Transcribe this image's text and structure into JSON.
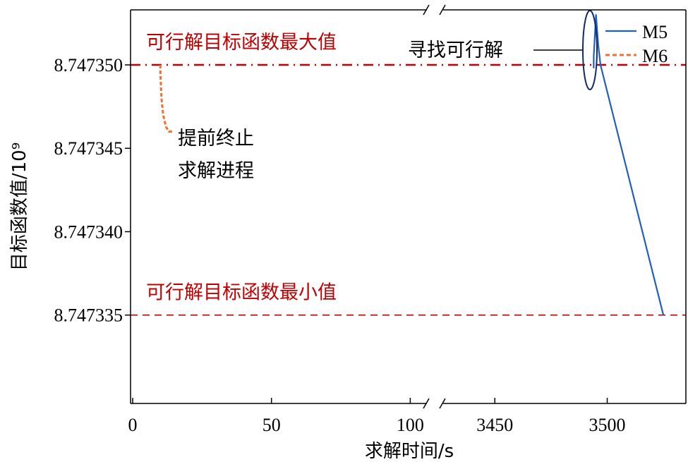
{
  "chart_data": {
    "type": "line",
    "xlabel": "求解时间/s",
    "ylabel": "目标函数值/10⁹",
    "x_segments": [
      {
        "range": [
          0,
          106
        ],
        "ticks": [
          0,
          50,
          100
        ]
      },
      {
        "range": [
          3427,
          3535
        ],
        "ticks": [
          3450,
          3500
        ]
      }
    ],
    "axis_break": "//",
    "ylim": [
      8.7473297,
      8.7473533
    ],
    "y_ticks": [
      "8.747335",
      "8.747340",
      "8.747345",
      "8.747350"
    ],
    "y_tick_values": [
      8.747335,
      8.74734,
      8.747345,
      8.74735
    ],
    "reference_lines": [
      {
        "label": "可行解目标函数最大值",
        "y": 8.74735,
        "color": "#c00000",
        "style": "dash-dot"
      },
      {
        "label": "可行解目标函数最小值",
        "y": 8.747335,
        "color": "#c00000",
        "style": "dashed"
      }
    ],
    "series": [
      {
        "name": "M5",
        "color": "#1f5fbf",
        "style": "solid",
        "x": [
          3494,
          3494,
          3495,
          3496,
          3497,
          3525
        ],
        "y": [
          8.7473498,
          8.7473505,
          8.747353,
          8.7473512,
          8.74735,
          8.747335
        ]
      },
      {
        "name": "M6",
        "color": "#f07030",
        "style": "dashed",
        "x": [
          10,
          10,
          10.4,
          11,
          12,
          13,
          15
        ],
        "y": [
          8.74735,
          8.7473495,
          8.747348,
          8.747347,
          8.7473463,
          8.747346,
          8.747346
        ]
      }
    ],
    "annotations": [
      {
        "id": "early_stop",
        "text": [
          "提前终止",
          "求解进程"
        ]
      },
      {
        "id": "find_feasible",
        "text": "寻找可行解"
      }
    ],
    "legend": "top-right",
    "grid": false
  }
}
